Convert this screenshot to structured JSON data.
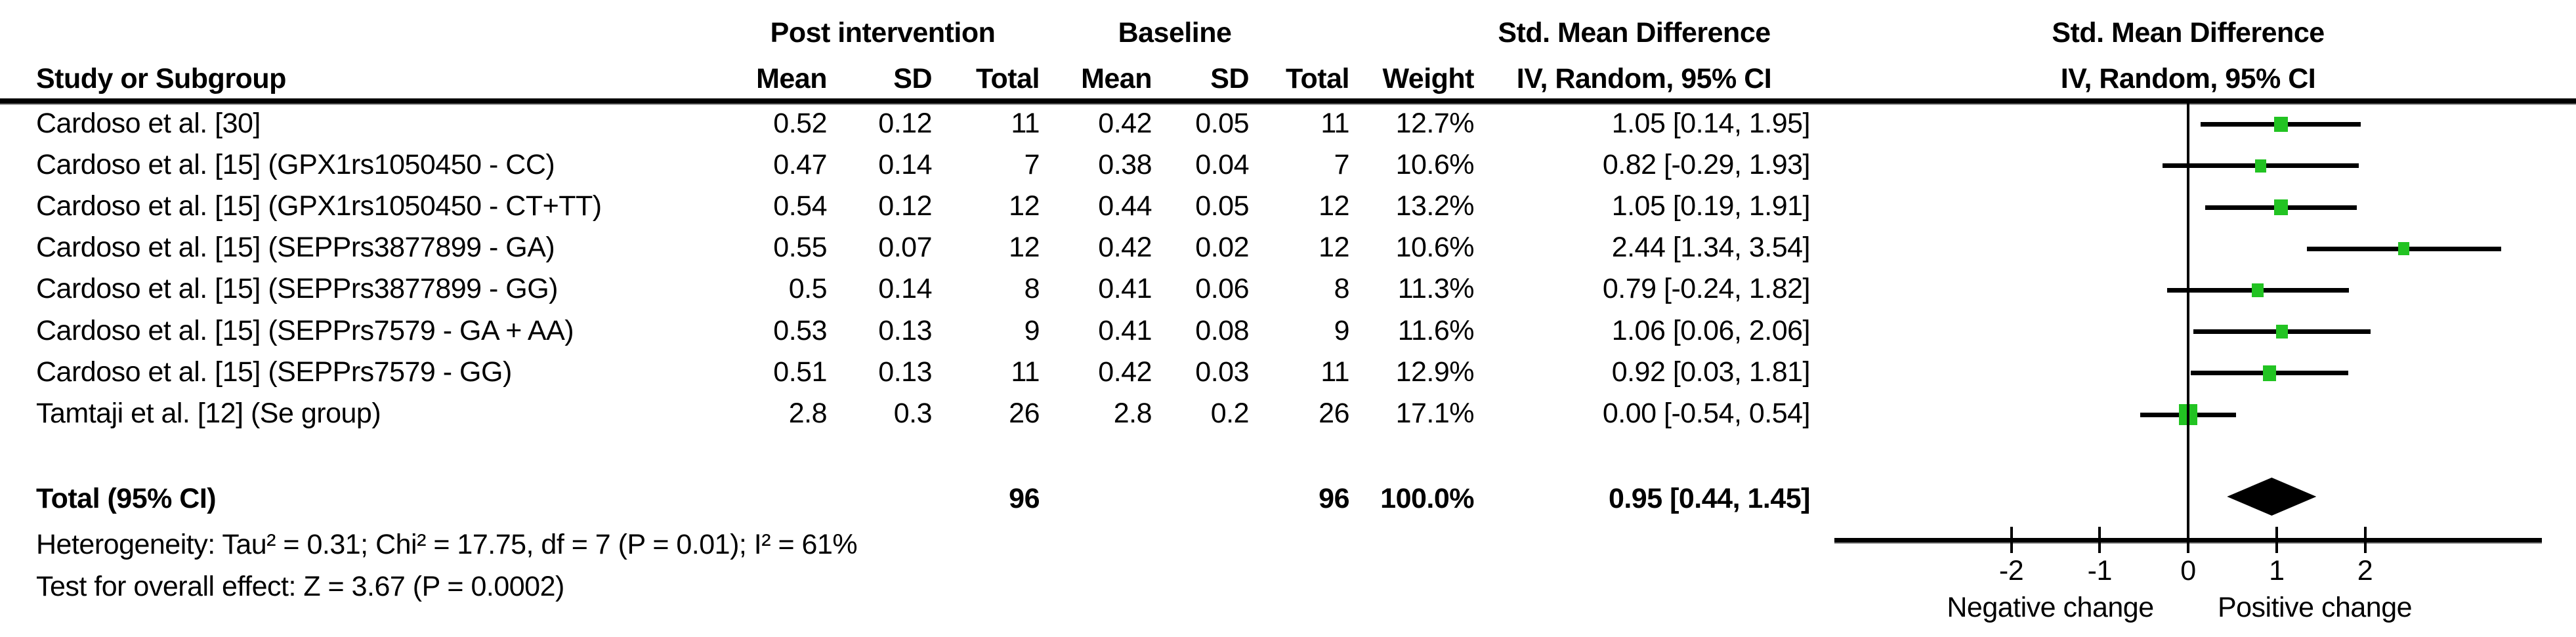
{
  "header": {
    "post_group": "Post intervention",
    "baseline_group": "Baseline",
    "smd_left": "Std. Mean Difference",
    "smd_right": "Std. Mean Difference",
    "study": "Study or Subgroup",
    "mean1": "Mean",
    "sd1": "SD",
    "total1": "Total",
    "mean2": "Mean",
    "sd2": "SD",
    "total2": "Total",
    "weight": "Weight",
    "method_left": "IV, Random, 95% CI",
    "method_right": "IV, Random, 95% CI"
  },
  "colors": {
    "marker_green": "#22c322",
    "line_black": "#000000"
  },
  "chart_data": {
    "type": "forest",
    "effect_measure": "Std. Mean Difference",
    "model": "IV, Random, 95% CI",
    "axis": {
      "ticks": [
        -2,
        -1,
        0,
        1,
        2
      ],
      "range": [
        -4,
        4
      ],
      "negative_label": "Negative change",
      "positive_label": "Positive change"
    },
    "studies": [
      {
        "label": "Cardoso et al. [30]",
        "post_mean": "0.52",
        "post_sd": "0.12",
        "post_total": "11",
        "base_mean": "0.42",
        "base_sd": "0.05",
        "base_total": "11",
        "weight": "12.7%",
        "weight_num": 12.7,
        "smd": 1.05,
        "ci_low": 0.14,
        "ci_high": 1.95,
        "ci_text": "1.05 [0.14, 1.95]"
      },
      {
        "label": "Cardoso et al. [15] (GPX1rs1050450 - CC)",
        "post_mean": "0.47",
        "post_sd": "0.14",
        "post_total": "7",
        "base_mean": "0.38",
        "base_sd": "0.04",
        "base_total": "7",
        "weight": "10.6%",
        "weight_num": 10.6,
        "smd": 0.82,
        "ci_low": -0.29,
        "ci_high": 1.93,
        "ci_text": "0.82 [-0.29, 1.93]"
      },
      {
        "label": "Cardoso et al. [15] (GPX1rs1050450 - CT+TT)",
        "post_mean": "0.54",
        "post_sd": "0.12",
        "post_total": "12",
        "base_mean": "0.44",
        "base_sd": "0.05",
        "base_total": "12",
        "weight": "13.2%",
        "weight_num": 13.2,
        "smd": 1.05,
        "ci_low": 0.19,
        "ci_high": 1.91,
        "ci_text": "1.05 [0.19, 1.91]"
      },
      {
        "label": "Cardoso et al. [15] (SEPPrs3877899 - GA)",
        "post_mean": "0.55",
        "post_sd": "0.07",
        "post_total": "12",
        "base_mean": "0.42",
        "base_sd": "0.02",
        "base_total": "12",
        "weight": "10.6%",
        "weight_num": 10.6,
        "smd": 2.44,
        "ci_low": 1.34,
        "ci_high": 3.54,
        "ci_text": "2.44 [1.34, 3.54]"
      },
      {
        "label": "Cardoso et al. [15] (SEPPrs3877899 - GG)",
        "post_mean": "0.5",
        "post_sd": "0.14",
        "post_total": "8",
        "base_mean": "0.41",
        "base_sd": "0.06",
        "base_total": "8",
        "weight": "11.3%",
        "weight_num": 11.3,
        "smd": 0.79,
        "ci_low": -0.24,
        "ci_high": 1.82,
        "ci_text": "0.79 [-0.24, 1.82]"
      },
      {
        "label": "Cardoso et al. [15] (SEPPrs7579 - GA + AA)",
        "post_mean": "0.53",
        "post_sd": "0.13",
        "post_total": "9",
        "base_mean": "0.41",
        "base_sd": "0.08",
        "base_total": "9",
        "weight": "11.6%",
        "weight_num": 11.6,
        "smd": 1.06,
        "ci_low": 0.06,
        "ci_high": 2.06,
        "ci_text": "1.06 [0.06, 2.06]"
      },
      {
        "label": "Cardoso et al. [15] (SEPPrs7579 - GG)",
        "post_mean": "0.51",
        "post_sd": "0.13",
        "post_total": "11",
        "base_mean": "0.42",
        "base_sd": "0.03",
        "base_total": "11",
        "weight": "12.9%",
        "weight_num": 12.9,
        "smd": 0.92,
        "ci_low": 0.03,
        "ci_high": 1.81,
        "ci_text": "0.92 [0.03, 1.81]"
      },
      {
        "label": "Tamtaji et al. [12] (Se group)",
        "post_mean": "2.8",
        "post_sd": "0.3",
        "post_total": "26",
        "base_mean": "2.8",
        "base_sd": "0.2",
        "base_total": "26",
        "weight": "17.1%",
        "weight_num": 17.1,
        "smd": 0.0,
        "ci_low": -0.54,
        "ci_high": 0.54,
        "ci_text": "0.00 [-0.54, 0.54]"
      }
    ],
    "total": {
      "label": "Total (95% CI)",
      "post_total": "96",
      "base_total": "96",
      "weight": "100.0%",
      "smd": 0.95,
      "ci_low": 0.44,
      "ci_high": 1.45,
      "ci_text": "0.95 [0.44, 1.45]"
    },
    "heterogeneity": "Heterogeneity: Tau² = 0.31; Chi² = 17.75, df = 7 (P = 0.01); I² = 61%",
    "overall_effect": "Test for overall effect: Z = 3.67 (P = 0.0002)"
  }
}
